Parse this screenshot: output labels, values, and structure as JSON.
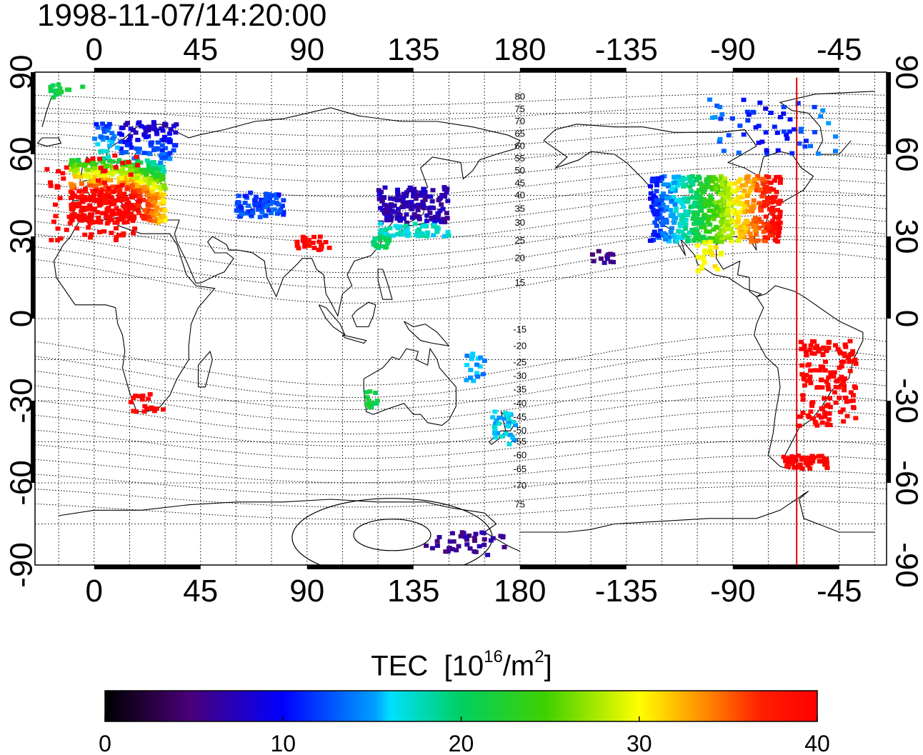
{
  "timestamp": "1998-11-07/14:20:00",
  "map": {
    "lon_ticks_top": [
      "0",
      "45",
      "90",
      "135",
      "180",
      "-135",
      "-90",
      "-45"
    ],
    "lon_ticks_bottom": [
      "0",
      "45",
      "90",
      "135",
      "180",
      "-135",
      "-90",
      "-45"
    ],
    "lat_ticks_left": [
      "90",
      "60",
      "30",
      "0",
      "-30",
      "-60",
      "-90"
    ],
    "lat_ticks_right": [
      "90",
      "60",
      "30",
      "0",
      "-30",
      "-60",
      "-90"
    ],
    "lon_range": [
      -25,
      335
    ],
    "lat_range": [
      -90,
      90
    ],
    "terminator_lon": 297,
    "contour_labels": {
      "north": [
        "80",
        "75",
        "70",
        "65",
        "60",
        "55",
        "50",
        "45",
        "40",
        "35",
        "30",
        "25",
        "20",
        "15"
      ],
      "south": [
        "-15",
        "-20",
        "-25",
        "-30",
        "-35",
        "-40",
        "-45",
        "-50",
        "-55",
        "-60",
        "-65",
        "-70",
        "75"
      ]
    }
  },
  "colorbar": {
    "title": "TEC",
    "unit_prefix": "[10",
    "unit_exp": "16",
    "unit_mid": "/m",
    "unit_exp2": "2",
    "unit_suffix": "]",
    "min": 0,
    "max": 40,
    "ticks": [
      "0",
      "10",
      "20",
      "30",
      "40"
    ]
  },
  "colors": {
    "terminator": "#e00000",
    "frame": "#000000"
  }
}
